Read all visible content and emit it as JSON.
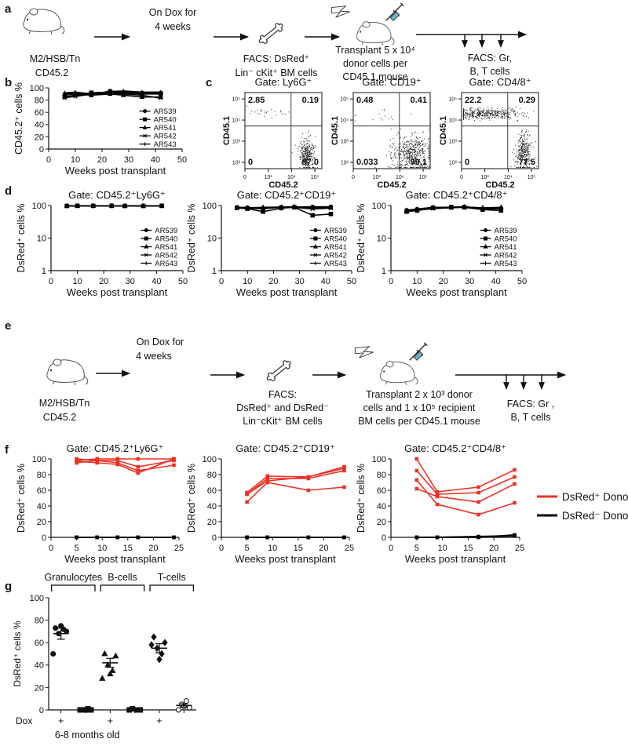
{
  "panel_labels": [
    "a",
    "b",
    "c",
    "d",
    "e",
    "f",
    "g"
  ],
  "diagram_a": {
    "texts": [
      "M2/HSB/Tn",
      "CD45.2",
      "On Dox for",
      "4 weeks",
      "FACS: DsRed⁺",
      "Lin⁻ cKit⁺  BM cells",
      "Transplant  5 x 10⁴",
      "donor cells per",
      "CD45.1 mouse",
      "FACS:   Gr,",
      "B, T cells"
    ]
  },
  "diagram_e": {
    "texts": [
      "M2/HSB/Tn",
      "CD45.2",
      "On Dox for",
      "4 weeks",
      "FACS:",
      "DsRed⁺ and DsRed⁻",
      "Lin⁻cKit⁺ BM cells",
      "Transplant 2 x 10³ donor",
      "cells and 1 x 10⁵ recipient",
      "BM cells per CD45.1 mouse",
      "FACS:   Gr ,",
      "B, T cells"
    ]
  },
  "chart_data": [
    {
      "type": "line",
      "ylabel": "CD45.2⁺ cells %",
      "xlabel": "Weeks post transplant",
      "x": [
        6,
        10,
        16,
        23,
        28,
        35,
        42
      ],
      "xlim": [
        0,
        50
      ],
      "xticks": [
        0,
        10,
        20,
        30,
        40,
        50
      ],
      "ylim": [
        0,
        100
      ],
      "yticks": [
        0,
        20,
        40,
        60,
        80,
        100
      ],
      "legend": "inside-right",
      "series": [
        {
          "name": "AR539",
          "color": "#000000",
          "marker": "circle",
          "values": [
            88,
            90,
            88,
            95,
            93,
            92,
            92
          ]
        },
        {
          "name": "AR540",
          "color": "#000000",
          "marker": "square",
          "values": [
            85,
            88,
            92,
            93,
            92,
            90,
            90
          ]
        },
        {
          "name": "AR541",
          "color": "#000000",
          "marker": "triangle",
          "values": [
            90,
            92,
            88,
            90,
            88,
            85,
            85
          ]
        },
        {
          "name": "AR542",
          "color": "#000000",
          "marker": "cross",
          "values": [
            84,
            86,
            90,
            92,
            90,
            88,
            83
          ]
        },
        {
          "name": "AR543",
          "color": "#000000",
          "marker": "plus",
          "values": [
            92,
            93,
            90,
            94,
            95,
            93,
            93
          ]
        }
      ]
    },
    {
      "type": "flow",
      "title": "Gate: Ly6G⁺",
      "xlabel": "CD45.2",
      "ylabel": "CD45.1",
      "xlog": true,
      "ylog": true,
      "xlim": [
        100,
        200000
      ],
      "ylim": [
        50,
        200000
      ],
      "xticks": [
        0,
        {
          "value": 1000,
          "label": "10³"
        },
        {
          "value": 10000,
          "label": "10⁴"
        },
        {
          "value": 100000,
          "label": "10⁵"
        }
      ],
      "yticks": [
        {
          "value": 100,
          "label": "10²"
        },
        {
          "value": 1000,
          "label": "10³"
        },
        {
          "value": 10000,
          "label": "10⁴"
        },
        {
          "value": 100000,
          "label": "10⁵"
        }
      ],
      "values": [
        2.85,
        0.19,
        0,
        97.0
      ],
      "value_labels": [
        "2.85",
        "0.19",
        "0",
        "97.0"
      ]
    },
    {
      "type": "flow",
      "title": "Gate: CD19⁺",
      "xlabel": "CD45.2",
      "ylabel": "CD45.1",
      "xlog": true,
      "ylog": true,
      "xlim": [
        100,
        200000
      ],
      "ylim": [
        50,
        200000
      ],
      "xticks": [
        0,
        {
          "value": 1000,
          "label": "10³"
        },
        {
          "value": 10000,
          "label": "10⁴"
        },
        {
          "value": 100000,
          "label": "10⁵"
        }
      ],
      "yticks": [
        {
          "value": 100,
          "label": "10²"
        },
        {
          "value": 1000,
          "label": "10³"
        },
        {
          "value": 10000,
          "label": "10⁴"
        },
        {
          "value": 100000,
          "label": "10⁵"
        }
      ],
      "values": [
        0.48,
        0.41,
        0.033,
        99.1
      ],
      "value_labels": [
        "0.48",
        "0.41",
        "0.033",
        "99.1"
      ]
    },
    {
      "type": "flow",
      "title": "Gate: CD4/8⁺",
      "xlabel": "CD45.2",
      "ylabel": "CD45.1",
      "xlog": true,
      "ylog": true,
      "xlim": [
        100,
        200000
      ],
      "ylim": [
        50,
        200000
      ],
      "xticks": [
        0,
        {
          "value": 1000,
          "label": "10³"
        },
        {
          "value": 10000,
          "label": "10⁴"
        },
        {
          "value": 100000,
          "label": "10⁵"
        }
      ],
      "yticks": [
        {
          "value": 100,
          "label": "10²"
        },
        {
          "value": 1000,
          "label": "10³"
        },
        {
          "value": 10000,
          "label": "10⁴"
        },
        {
          "value": 100000,
          "label": "10⁵"
        }
      ],
      "values": [
        22.2,
        0.29,
        0,
        77.5
      ],
      "value_labels": [
        "22.2",
        "0.29",
        "0",
        "77.5"
      ]
    },
    {
      "type": "line",
      "title": "Gate: CD45.2⁺Ly6G⁺",
      "ylabel": "DsRed⁺ cells %",
      "xlabel": "Weeks post transplant",
      "x": [
        6,
        10,
        16,
        23,
        28,
        35,
        42
      ],
      "xlim": [
        0,
        50
      ],
      "xticks": [
        0,
        10,
        20,
        30,
        40,
        50
      ],
      "ylog": true,
      "ylim": [
        1,
        100
      ],
      "yticks": [
        1,
        10,
        100
      ],
      "legend": "inside-right",
      "series": [
        {
          "name": "AR539",
          "color": "#000000",
          "marker": "circle",
          "values": [
            98,
            98,
            97,
            97,
            98,
            98,
            97
          ]
        },
        {
          "name": "AR540",
          "color": "#000000",
          "marker": "square",
          "values": [
            97,
            98,
            98,
            98,
            97,
            97,
            98
          ]
        },
        {
          "name": "AR541",
          "color": "#000000",
          "marker": "triangle",
          "values": [
            98,
            97,
            98,
            98,
            98,
            98,
            98
          ]
        },
        {
          "name": "AR542",
          "color": "#000000",
          "marker": "cross",
          "values": [
            97,
            97,
            97,
            98,
            97,
            97,
            97
          ]
        },
        {
          "name": "AR543",
          "color": "#000000",
          "marker": "plus",
          "values": [
            98,
            98,
            98,
            97,
            98,
            98,
            98
          ]
        }
      ]
    },
    {
      "type": "line",
      "title": "Gate: CD45.2⁺CD19⁺",
      "ylabel": "DsRed⁺ cells %",
      "xlabel": "Weeks post transplant",
      "x": [
        6,
        10,
        16,
        23,
        28,
        35,
        42
      ],
      "xlim": [
        0,
        50
      ],
      "xticks": [
        0,
        10,
        20,
        30,
        40,
        50
      ],
      "ylog": true,
      "ylim": [
        1,
        100
      ],
      "yticks": [
        1,
        10,
        100
      ],
      "legend": "inside-right",
      "series": [
        {
          "name": "AR539",
          "color": "#000000",
          "marker": "circle",
          "values": [
            88,
            87,
            82,
            88,
            90,
            92,
            92
          ]
        },
        {
          "name": "AR540",
          "color": "#000000",
          "marker": "square",
          "values": [
            85,
            80,
            65,
            83,
            88,
            50,
            55
          ]
        },
        {
          "name": "AR541",
          "color": "#000000",
          "marker": "triangle",
          "values": [
            86,
            85,
            88,
            90,
            92,
            85,
            85
          ]
        },
        {
          "name": "AR542",
          "color": "#000000",
          "marker": "cross",
          "values": [
            84,
            83,
            80,
            90,
            88,
            78,
            83
          ]
        },
        {
          "name": "AR543",
          "color": "#000000",
          "marker": "plus",
          "values": [
            87,
            86,
            85,
            89,
            91,
            88,
            90
          ]
        }
      ]
    },
    {
      "type": "line",
      "title": "Gate: CD45.2⁺CD4/8⁺",
      "ylabel": "DsRed⁺ cells %",
      "xlabel": "Weeks post transplant",
      "x": [
        6,
        10,
        16,
        23,
        28,
        35,
        42
      ],
      "xlim": [
        0,
        50
      ],
      "xticks": [
        0,
        10,
        20,
        30,
        40,
        50
      ],
      "ylog": true,
      "ylim": [
        1,
        100
      ],
      "yticks": [
        1,
        10,
        100
      ],
      "legend": "inside-right",
      "series": [
        {
          "name": "AR539",
          "color": "#000000",
          "marker": "circle",
          "values": [
            72,
            78,
            88,
            88,
            92,
            80,
            82
          ]
        },
        {
          "name": "AR540",
          "color": "#000000",
          "marker": "square",
          "values": [
            65,
            70,
            85,
            90,
            88,
            75,
            70
          ]
        },
        {
          "name": "AR541",
          "color": "#000000",
          "marker": "triangle",
          "values": [
            70,
            75,
            82,
            85,
            90,
            85,
            88
          ]
        },
        {
          "name": "AR542",
          "color": "#000000",
          "marker": "cross",
          "values": [
            68,
            72,
            80,
            86,
            88,
            78,
            80
          ]
        },
        {
          "name": "AR543",
          "color": "#000000",
          "marker": "plus",
          "values": [
            73,
            76,
            84,
            88,
            92,
            82,
            85
          ]
        }
      ]
    },
    {
      "type": "line",
      "title": "Gate: CD45.2⁺Ly6G⁺",
      "ylabel": "DsRed⁺ cells %",
      "xlabel": "Weeks post transplant",
      "x": [
        5,
        9,
        13,
        17,
        24
      ],
      "xlim": [
        0,
        25
      ],
      "xticks": [
        0,
        5,
        10,
        15,
        20,
        25
      ],
      "ylim": [
        0,
        100
      ],
      "yticks": [
        0,
        20,
        40,
        60,
        80,
        100
      ],
      "marker": "square",
      "series": [
        {
          "color": "#ee3124",
          "values": [
            98,
            100,
            100,
            100,
            100
          ]
        },
        {
          "color": "#ee3124",
          "values": [
            95,
            98,
            95,
            85,
            92
          ]
        },
        {
          "color": "#ee3124",
          "values": [
            97,
            95,
            93,
            82,
            100
          ]
        },
        {
          "color": "#ee3124",
          "values": [
            100,
            98,
            98,
            90,
            98
          ]
        },
        {
          "color": "#000000",
          "values": [
            0,
            0,
            0,
            0,
            0
          ]
        },
        {
          "color": "#000000",
          "values": [
            0,
            0,
            0,
            0,
            0
          ]
        }
      ]
    },
    {
      "type": "line",
      "title": "Gate: CD45.2⁺CD19⁺",
      "ylabel": "DsRed⁺ cells %",
      "xlabel": "Weeks post transplant",
      "x": [
        5,
        9,
        17,
        24
      ],
      "xlim": [
        0,
        25
      ],
      "xticks": [
        0,
        5,
        10,
        15,
        20,
        25
      ],
      "ylim": [
        0,
        100
      ],
      "yticks": [
        0,
        20,
        40,
        60,
        80,
        100
      ],
      "marker": "square",
      "series": [
        {
          "color": "#ee3124",
          "values": [
            57,
            78,
            77,
            90
          ]
        },
        {
          "color": "#ee3124",
          "values": [
            45,
            70,
            60,
            64
          ]
        },
        {
          "color": "#ee3124",
          "values": [
            55,
            75,
            75,
            85
          ]
        },
        {
          "color": "#ee3124",
          "values": [
            55,
            72,
            77,
            88
          ]
        },
        {
          "color": "#000000",
          "values": [
            0,
            0,
            0,
            0
          ]
        },
        {
          "color": "#000000",
          "values": [
            0,
            0,
            0,
            0
          ]
        }
      ]
    },
    {
      "type": "line",
      "title": "Gate: CD45.2⁺CD4/8⁺",
      "ylabel": "DsRed⁺ cells %",
      "xlabel": "Weeks post transplant",
      "x": [
        5,
        9,
        17,
        24
      ],
      "xlim": [
        0,
        25
      ],
      "xticks": [
        0,
        5,
        10,
        15,
        20,
        25
      ],
      "ylim": [
        0,
        100
      ],
      "yticks": [
        0,
        20,
        40,
        60,
        80,
        100
      ],
      "marker": "square",
      "legend_right": [
        {
          "name": "DsRed⁺ Donor",
          "color": "#ee3124"
        },
        {
          "name": "DsRed⁻ Donor",
          "color": "#000000"
        }
      ],
      "series": [
        {
          "color": "#ee3124",
          "values": [
            100,
            58,
            64,
            86
          ]
        },
        {
          "color": "#ee3124",
          "values": [
            73,
            42,
            29,
            44
          ]
        },
        {
          "color": "#ee3124",
          "values": [
            62,
            52,
            45,
            68
          ]
        },
        {
          "color": "#ee3124",
          "values": [
            85,
            55,
            57,
            77
          ]
        },
        {
          "color": "#000000",
          "values": [
            0,
            0,
            0,
            3
          ]
        },
        {
          "color": "#000000",
          "values": [
            0,
            0,
            1,
            2
          ]
        }
      ]
    },
    {
      "type": "dot",
      "ylabel": "DsRed⁺ cells %",
      "xlabel": "6-8 months old",
      "row_label": "Dox",
      "groups": [
        "Granulocytes",
        "B-cells",
        "T-cells"
      ],
      "categories": [
        "+",
        null,
        "+",
        null,
        "+",
        null
      ],
      "ylim": [
        0,
        100
      ],
      "yticks": [
        0,
        20,
        40,
        60,
        80,
        100
      ],
      "markers": [
        "circle",
        "square",
        "triangle",
        "square",
        "diamond",
        "circle"
      ],
      "filled": [
        true,
        true,
        true,
        true,
        true,
        false
      ],
      "values": [
        [
          73,
          70,
          68,
          72,
          75,
          50
        ],
        [
          0,
          0,
          0,
          1,
          0
        ],
        [
          50,
          48,
          40,
          35,
          32,
          28
        ],
        [
          0,
          0,
          1,
          0
        ],
        [
          65,
          60,
          55,
          50,
          45,
          58
        ],
        [
          0,
          2,
          5,
          8,
          3
        ]
      ],
      "means": [
        68,
        0,
        42,
        0,
        55,
        4
      ],
      "sems": [
        5,
        0.3,
        4,
        0.3,
        4,
        1.5
      ]
    }
  ]
}
